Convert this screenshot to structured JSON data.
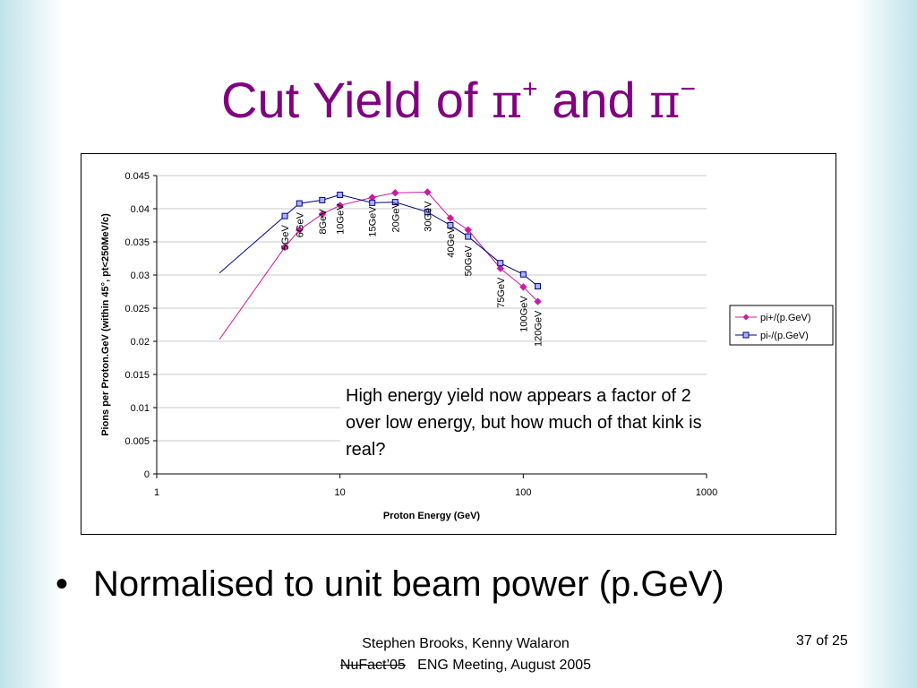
{
  "slide": {
    "title_prefix": "Cut Yield of ",
    "pi": "π",
    "sup_plus": "+",
    "title_and": " and ",
    "sup_minus": "−",
    "annotation": "High energy yield now appears a factor of 2 over low energy, but how much of that kink is real?",
    "bullet_marker": "•",
    "bullet": "Normalised to unit beam power (p.GeV)",
    "footer_line1": "Stephen Brooks, Kenny Walaron",
    "footer_strike": "NuFact’05",
    "footer_line2": "ENG Meeting, August 2005",
    "page": "37 of 25"
  },
  "colors": {
    "title": "#800080",
    "pi_plus": "#cc1aa3",
    "pi_minus": "#000080"
  },
  "chart_data": {
    "type": "line",
    "x_scale": "log",
    "xlabel": "Proton Energy (GeV)",
    "ylabel": "Pions per Proton.GeV (within 45°, pt<250MeV/c)",
    "xlim": [
      1,
      1000
    ],
    "ylim": [
      0,
      0.045
    ],
    "x_ticks": [
      "1",
      "10",
      "100",
      "1000"
    ],
    "y_ticks": [
      "0",
      "0.005",
      "0.01",
      "0.015",
      "0.02",
      "0.025",
      "0.03",
      "0.035",
      "0.04",
      "0.045"
    ],
    "grid": "horizontal",
    "legend_position": "right",
    "x": [
      5,
      6,
      8,
      10,
      15,
      20,
      30,
      40,
      50,
      75,
      100,
      120
    ],
    "point_labels": [
      "5GeV",
      "6GeV",
      "8GeV",
      "10GeV",
      "15GeV",
      "20GeV",
      "30GeV",
      "40GeV",
      "50GeV",
      "75GeV",
      "100GeV",
      "120GeV"
    ],
    "series": [
      {
        "name": "pi+/(p.GeV)",
        "marker": "diamond",
        "values": [
          0.0342,
          0.0368,
          0.0392,
          0.0405,
          0.0417,
          0.0424,
          0.0425,
          0.0386,
          0.0368,
          0.031,
          0.0282,
          0.026
        ]
      },
      {
        "name": "pi-/(p.GeV)",
        "marker": "square",
        "values": [
          0.0389,
          0.0408,
          0.0413,
          0.0421,
          0.0409,
          0.041,
          0.0395,
          0.0375,
          0.0358,
          0.0318,
          0.0301,
          0.0283
        ]
      }
    ],
    "extra_lines": [
      {
        "series": "pi+/(p.GeV)",
        "from": [
          2.2,
          0.0203
        ],
        "to": [
          5,
          0.0342
        ]
      },
      {
        "series": "pi-/(p.GeV)",
        "from": [
          2.2,
          0.0303
        ],
        "to": [
          5,
          0.0389
        ]
      }
    ]
  }
}
